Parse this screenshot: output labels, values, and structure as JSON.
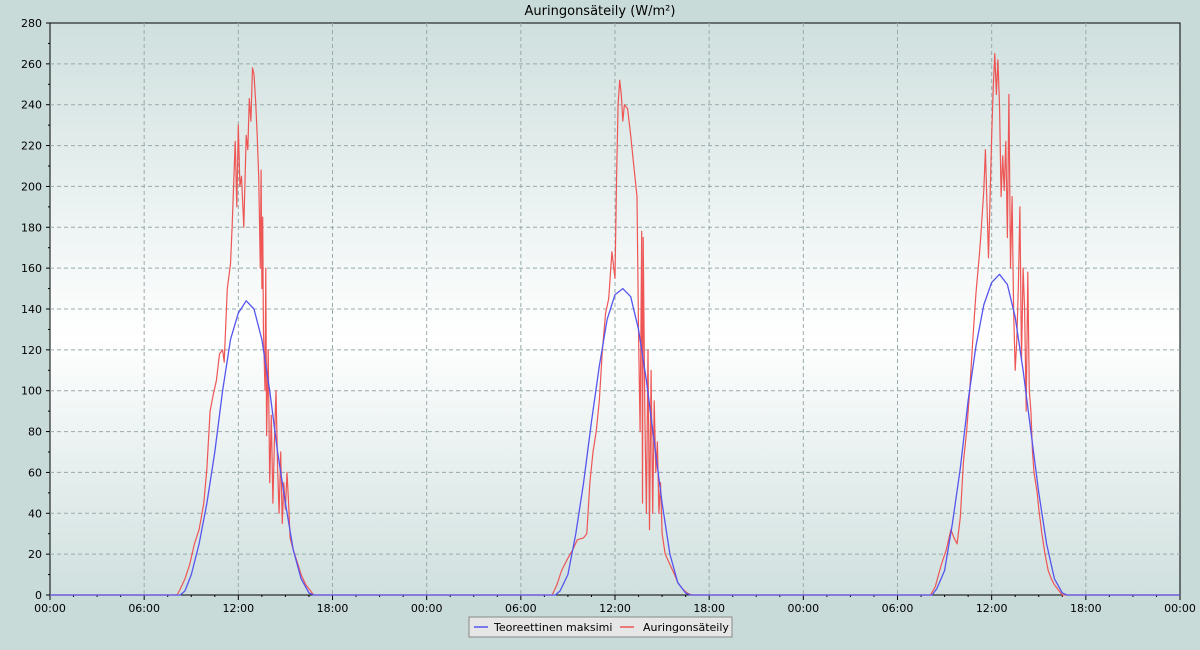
{
  "chart_data": {
    "type": "line",
    "title": "Auringonsäteily (W/m²)",
    "xlabel": "",
    "ylabel": "",
    "x_range_hours": [
      0,
      72
    ],
    "ylim": [
      0,
      280
    ],
    "y_ticks": [
      0,
      20,
      40,
      60,
      80,
      100,
      120,
      140,
      160,
      180,
      200,
      220,
      240,
      260,
      280
    ],
    "x_ticks": [
      {
        "hour": 0,
        "label": "00:00"
      },
      {
        "hour": 6,
        "label": "06:00"
      },
      {
        "hour": 12,
        "label": "12:00"
      },
      {
        "hour": 18,
        "label": "18:00"
      },
      {
        "hour": 24,
        "label": "00:00"
      },
      {
        "hour": 30,
        "label": "06:00"
      },
      {
        "hour": 36,
        "label": "12:00"
      },
      {
        "hour": 42,
        "label": "18:00"
      },
      {
        "hour": 48,
        "label": "00:00"
      },
      {
        "hour": 54,
        "label": "06:00"
      },
      {
        "hour": 60,
        "label": "12:00"
      },
      {
        "hour": 66,
        "label": "18:00"
      },
      {
        "hour": 72,
        "label": "00:00"
      }
    ],
    "grid": true,
    "legend_position": "bottom-center",
    "series": [
      {
        "name": "Teoreettinen maksimi",
        "color": "#5555ee",
        "points": [
          [
            0,
            0
          ],
          [
            8.3,
            0
          ],
          [
            8.6,
            2
          ],
          [
            9.0,
            10
          ],
          [
            9.5,
            25
          ],
          [
            10.0,
            45
          ],
          [
            10.5,
            70
          ],
          [
            11.0,
            100
          ],
          [
            11.5,
            125
          ],
          [
            12.0,
            138
          ],
          [
            12.5,
            144
          ],
          [
            13.0,
            140
          ],
          [
            13.5,
            125
          ],
          [
            14.0,
            100
          ],
          [
            14.5,
            70
          ],
          [
            15.0,
            45
          ],
          [
            15.5,
            22
          ],
          [
            16.0,
            8
          ],
          [
            16.5,
            1
          ],
          [
            16.8,
            0
          ],
          [
            32.2,
            0
          ],
          [
            32.5,
            2
          ],
          [
            33.0,
            10
          ],
          [
            33.5,
            30
          ],
          [
            34.0,
            55
          ],
          [
            34.5,
            85
          ],
          [
            35.0,
            112
          ],
          [
            35.5,
            135
          ],
          [
            36.0,
            147
          ],
          [
            36.5,
            150
          ],
          [
            37.0,
            146
          ],
          [
            37.5,
            130
          ],
          [
            38.0,
            105
          ],
          [
            38.5,
            75
          ],
          [
            39.0,
            45
          ],
          [
            39.5,
            20
          ],
          [
            40.0,
            6
          ],
          [
            40.5,
            1
          ],
          [
            40.8,
            0
          ],
          [
            56.2,
            0
          ],
          [
            56.5,
            3
          ],
          [
            57.0,
            12
          ],
          [
            57.5,
            35
          ],
          [
            58.0,
            62
          ],
          [
            58.5,
            95
          ],
          [
            59.0,
            122
          ],
          [
            59.5,
            142
          ],
          [
            60.0,
            153
          ],
          [
            60.5,
            157
          ],
          [
            61.0,
            152
          ],
          [
            61.5,
            136
          ],
          [
            62.0,
            110
          ],
          [
            62.5,
            80
          ],
          [
            63.0,
            50
          ],
          [
            63.5,
            25
          ],
          [
            64.0,
            8
          ],
          [
            64.5,
            1
          ],
          [
            64.8,
            0
          ],
          [
            72,
            0
          ]
        ]
      },
      {
        "name": "Auringonsäteily",
        "color": "#ee5555",
        "points": [
          [
            0,
            0
          ],
          [
            8.1,
            0
          ],
          [
            8.3,
            3
          ],
          [
            8.6,
            8
          ],
          [
            8.9,
            15
          ],
          [
            9.2,
            25
          ],
          [
            9.5,
            32
          ],
          [
            9.8,
            45
          ],
          [
            10.0,
            62
          ],
          [
            10.2,
            90
          ],
          [
            10.4,
            98
          ],
          [
            10.6,
            105
          ],
          [
            10.8,
            118
          ],
          [
            11.0,
            120
          ],
          [
            11.1,
            114
          ],
          [
            11.3,
            150
          ],
          [
            11.5,
            162
          ],
          [
            11.6,
            180
          ],
          [
            11.8,
            222
          ],
          [
            11.9,
            190
          ],
          [
            12.0,
            230
          ],
          [
            12.1,
            200
          ],
          [
            12.2,
            205
          ],
          [
            12.35,
            180
          ],
          [
            12.5,
            225
          ],
          [
            12.6,
            218
          ],
          [
            12.7,
            243
          ],
          [
            12.8,
            232
          ],
          [
            12.9,
            258
          ],
          [
            13.0,
            255
          ],
          [
            13.1,
            242
          ],
          [
            13.2,
            225
          ],
          [
            13.3,
            205
          ],
          [
            13.4,
            160
          ],
          [
            13.45,
            208
          ],
          [
            13.5,
            150
          ],
          [
            13.55,
            185
          ],
          [
            13.6,
            130
          ],
          [
            13.7,
            100
          ],
          [
            13.75,
            160
          ],
          [
            13.8,
            78
          ],
          [
            13.9,
            120
          ],
          [
            14.0,
            55
          ],
          [
            14.1,
            88
          ],
          [
            14.2,
            45
          ],
          [
            14.3,
            75
          ],
          [
            14.4,
            100
          ],
          [
            14.5,
            62
          ],
          [
            14.6,
            40
          ],
          [
            14.7,
            70
          ],
          [
            14.8,
            35
          ],
          [
            14.9,
            55
          ],
          [
            15.0,
            42
          ],
          [
            15.1,
            60
          ],
          [
            15.2,
            45
          ],
          [
            15.3,
            28
          ],
          [
            15.5,
            22
          ],
          [
            15.8,
            15
          ],
          [
            16.0,
            10
          ],
          [
            16.3,
            5
          ],
          [
            16.6,
            2
          ],
          [
            16.8,
            0
          ],
          [
            32.0,
            0
          ],
          [
            32.3,
            5
          ],
          [
            32.6,
            12
          ],
          [
            33.0,
            18
          ],
          [
            33.3,
            22
          ],
          [
            33.6,
            27
          ],
          [
            34.0,
            28
          ],
          [
            34.2,
            30
          ],
          [
            34.4,
            55
          ],
          [
            34.6,
            70
          ],
          [
            34.8,
            80
          ],
          [
            35.0,
            95
          ],
          [
            35.2,
            120
          ],
          [
            35.4,
            138
          ],
          [
            35.6,
            145
          ],
          [
            35.8,
            168
          ],
          [
            36.0,
            155
          ],
          [
            36.1,
            205
          ],
          [
            36.2,
            240
          ],
          [
            36.3,
            252
          ],
          [
            36.4,
            245
          ],
          [
            36.5,
            232
          ],
          [
            36.6,
            240
          ],
          [
            36.8,
            238
          ],
          [
            37.0,
            225
          ],
          [
            37.2,
            210
          ],
          [
            37.4,
            195
          ],
          [
            37.5,
            130
          ],
          [
            37.6,
            80
          ],
          [
            37.7,
            178
          ],
          [
            37.75,
            45
          ],
          [
            37.8,
            175
          ],
          [
            37.9,
            90
          ],
          [
            38.0,
            40
          ],
          [
            38.1,
            120
          ],
          [
            38.2,
            32
          ],
          [
            38.3,
            110
          ],
          [
            38.4,
            40
          ],
          [
            38.5,
            95
          ],
          [
            38.6,
            60
          ],
          [
            38.7,
            75
          ],
          [
            38.8,
            40
          ],
          [
            38.9,
            55
          ],
          [
            39.0,
            30
          ],
          [
            39.2,
            20
          ],
          [
            39.5,
            15
          ],
          [
            39.8,
            10
          ],
          [
            40.0,
            6
          ],
          [
            40.3,
            3
          ],
          [
            40.6,
            1
          ],
          [
            40.9,
            0
          ],
          [
            56.1,
            0
          ],
          [
            56.4,
            4
          ],
          [
            56.8,
            15
          ],
          [
            57.1,
            22
          ],
          [
            57.4,
            32
          ],
          [
            57.6,
            28
          ],
          [
            57.8,
            25
          ],
          [
            58.0,
            38
          ],
          [
            58.2,
            65
          ],
          [
            58.4,
            80
          ],
          [
            58.6,
            100
          ],
          [
            58.8,
            125
          ],
          [
            59.0,
            148
          ],
          [
            59.2,
            165
          ],
          [
            59.3,
            175
          ],
          [
            59.5,
            198
          ],
          [
            59.6,
            218
          ],
          [
            59.8,
            165
          ],
          [
            60.0,
            225
          ],
          [
            60.1,
            248
          ],
          [
            60.2,
            265
          ],
          [
            60.3,
            245
          ],
          [
            60.4,
            262
          ],
          [
            60.5,
            240
          ],
          [
            60.6,
            195
          ],
          [
            60.7,
            215
          ],
          [
            60.8,
            198
          ],
          [
            60.9,
            222
          ],
          [
            61.0,
            175
          ],
          [
            61.1,
            245
          ],
          [
            61.2,
            160
          ],
          [
            61.3,
            195
          ],
          [
            61.4,
            140
          ],
          [
            61.5,
            110
          ],
          [
            61.6,
            125
          ],
          [
            61.7,
            150
          ],
          [
            61.8,
            190
          ],
          [
            61.9,
            115
          ],
          [
            62.0,
            160
          ],
          [
            62.1,
            140
          ],
          [
            62.2,
            90
          ],
          [
            62.3,
            158
          ],
          [
            62.4,
            100
          ],
          [
            62.5,
            90
          ],
          [
            62.6,
            70
          ],
          [
            62.7,
            60
          ],
          [
            62.8,
            55
          ],
          [
            62.9,
            50
          ],
          [
            63.0,
            42
          ],
          [
            63.2,
            30
          ],
          [
            63.4,
            20
          ],
          [
            63.6,
            12
          ],
          [
            63.8,
            8
          ],
          [
            64.0,
            5
          ],
          [
            64.2,
            3
          ],
          [
            64.5,
            0
          ],
          [
            72,
            0
          ]
        ]
      }
    ]
  }
}
